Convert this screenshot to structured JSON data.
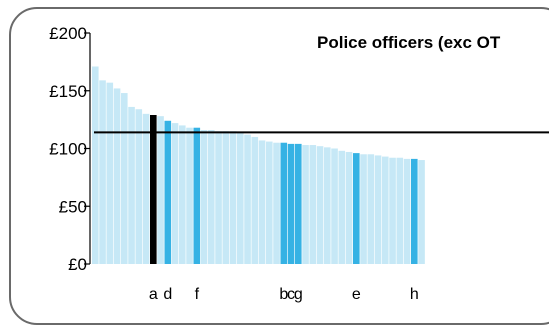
{
  "chart_data": {
    "type": "bar",
    "title": "Police officers (exc OT",
    "xlabel": "",
    "ylabel": "",
    "ylim": [
      0,
      200
    ],
    "y_ticks": [
      0,
      50,
      100,
      150,
      200
    ],
    "y_tick_labels": [
      "£0",
      "£50",
      "£100",
      "£150",
      "£200"
    ],
    "grid": false,
    "reference_line": 114,
    "colors": {
      "default": "#c6e8f6",
      "highlight": "#35b2e4",
      "selected": "#000000",
      "reference": "#000000"
    },
    "values": [
      171,
      159,
      157,
      152,
      148,
      136,
      134,
      130,
      129,
      128,
      124,
      122,
      120,
      118,
      118,
      116,
      116,
      115,
      115,
      115,
      114,
      112,
      110,
      107,
      106,
      105,
      105,
      104,
      104,
      103,
      103,
      102,
      101,
      100,
      98,
      97,
      96,
      95,
      95,
      94,
      93,
      92,
      92,
      91,
      91,
      90
    ],
    "bar_types": [
      "default",
      "default",
      "default",
      "default",
      "default",
      "default",
      "default",
      "default",
      "selected",
      "default",
      "highlight",
      "default",
      "default",
      "default",
      "highlight",
      "default",
      "default",
      "default",
      "default",
      "default",
      "default",
      "default",
      "default",
      "default",
      "default",
      "default",
      "highlight",
      "highlight",
      "highlight",
      "default",
      "default",
      "default",
      "default",
      "default",
      "default",
      "default",
      "highlight",
      "default",
      "default",
      "default",
      "default",
      "default",
      "default",
      "default",
      "highlight",
      "default"
    ],
    "category_labels": [
      "",
      "",
      "",
      "",
      "",
      "",
      "",
      "",
      "a",
      "",
      "d",
      "",
      "",
      "",
      "f",
      "",
      "",
      "",
      "",
      "",
      "",
      "",
      "",
      "",
      "",
      "",
      "b",
      "c",
      "g",
      "",
      "",
      "",
      "",
      "",
      "",
      "",
      "e",
      "",
      "",
      "",
      "",
      "",
      "",
      "",
      "h",
      ""
    ]
  }
}
